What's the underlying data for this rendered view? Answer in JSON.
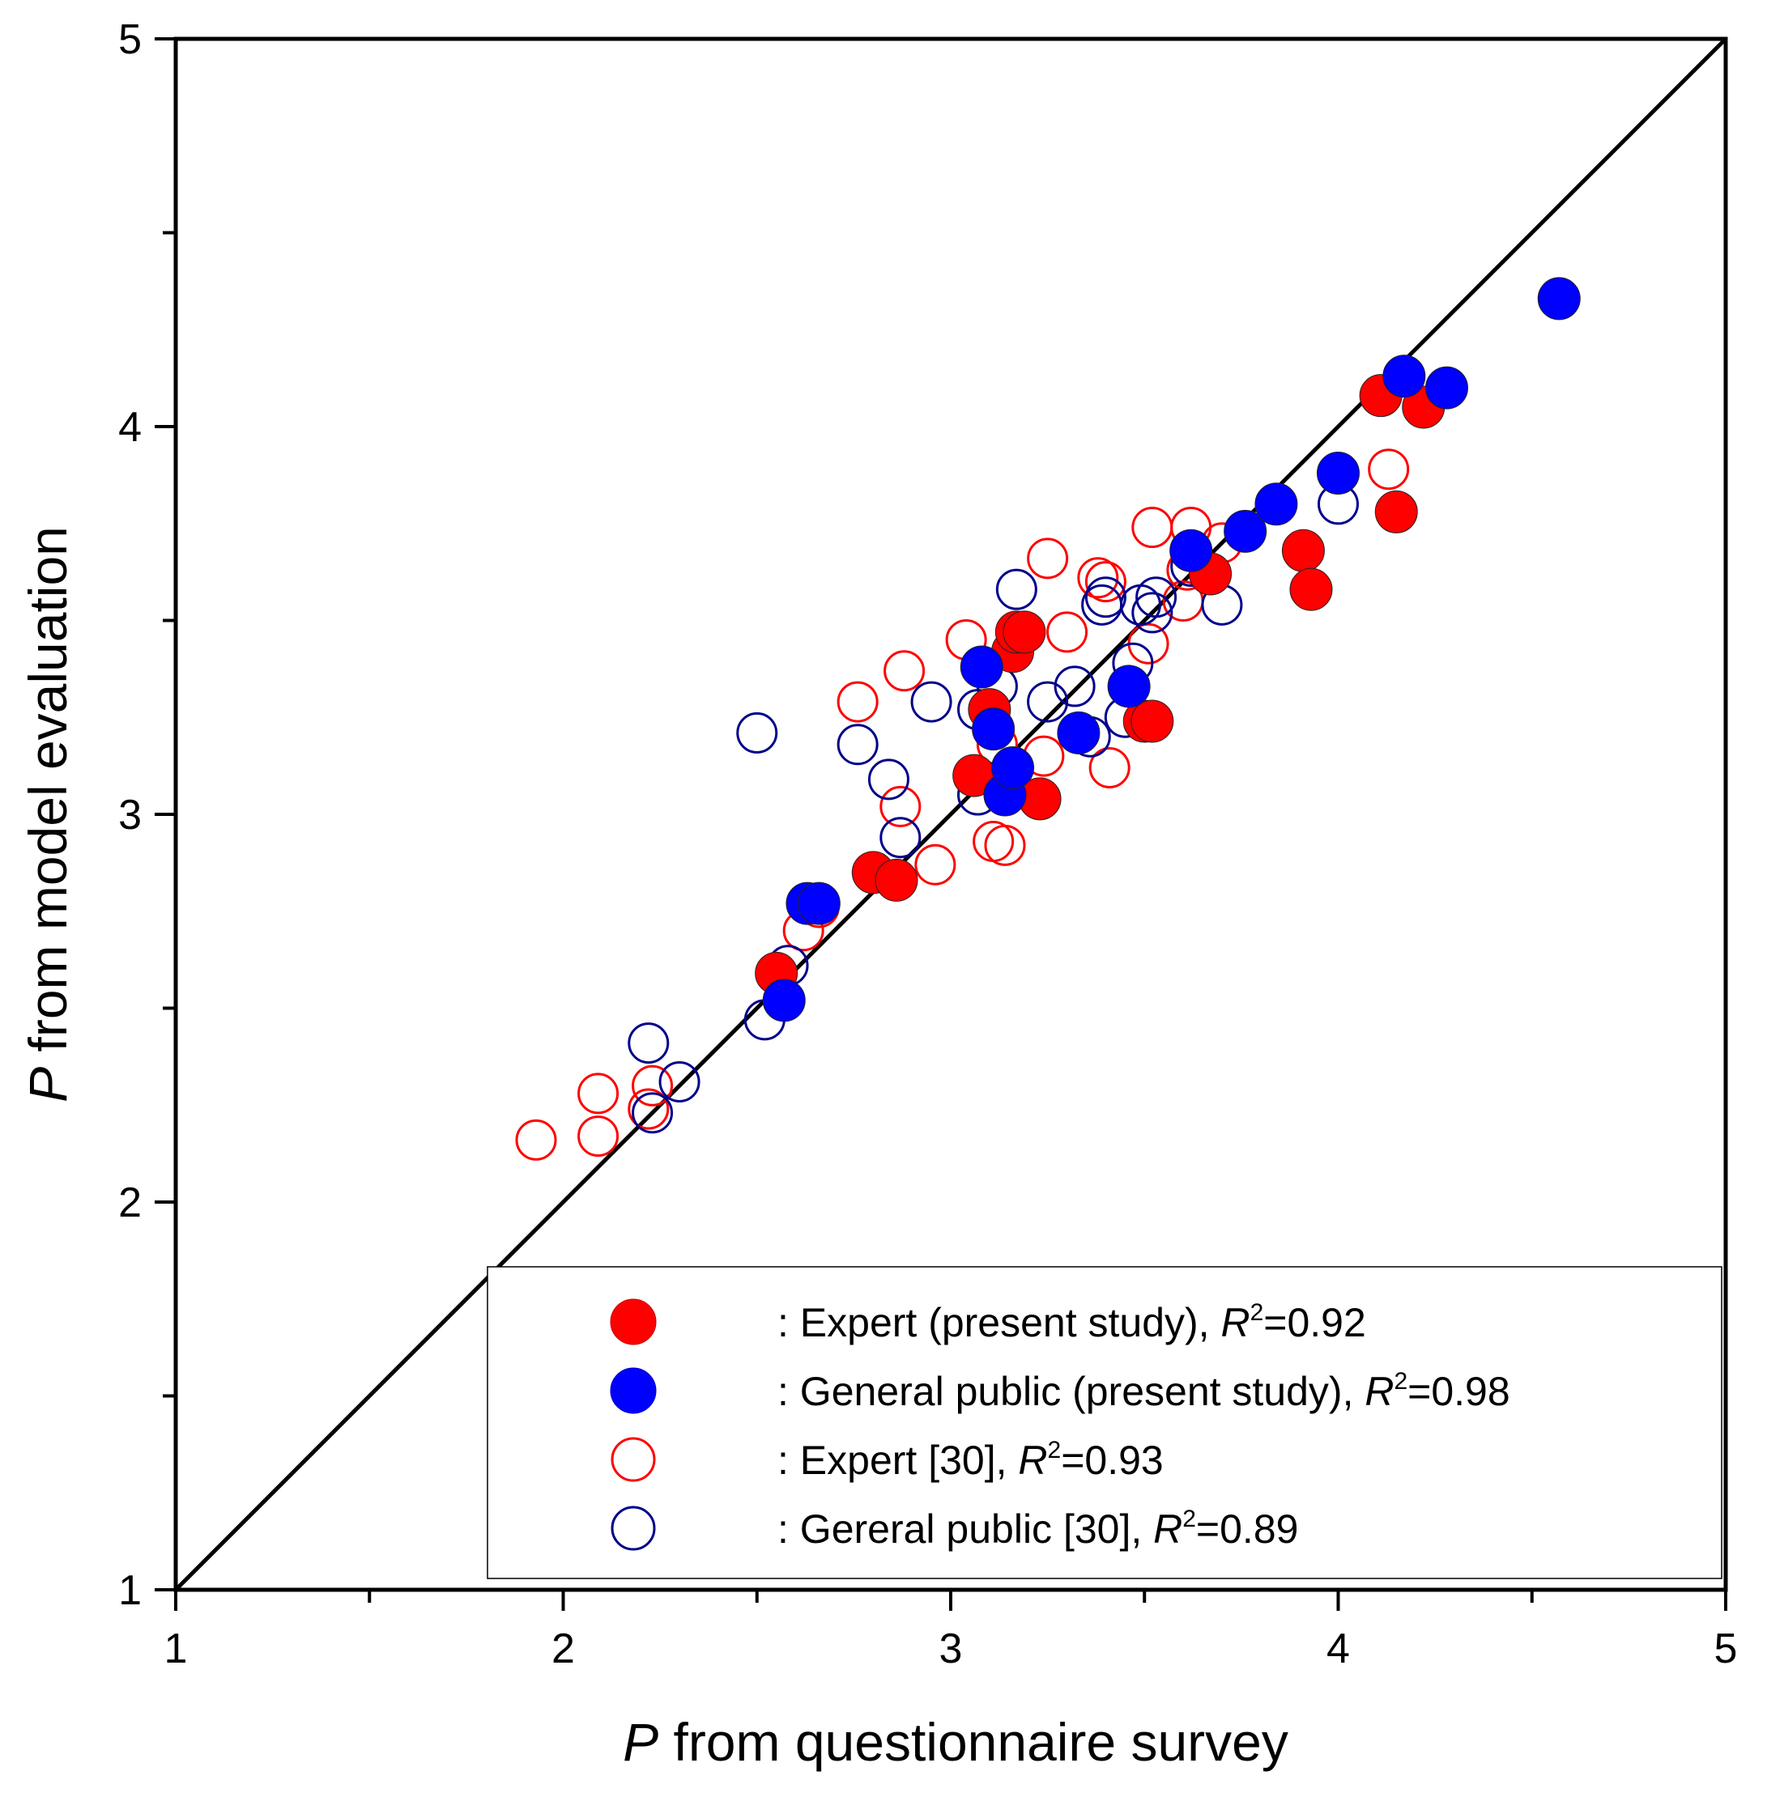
{
  "chart_data": {
    "type": "scatter",
    "title": "",
    "xlabel_var": "P",
    "xlabel_rest": " from questionnaire survey",
    "ylabel_var": "P",
    "ylabel_rest": " from model evaluation",
    "xlim": [
      1,
      5
    ],
    "ylim": [
      1,
      5
    ],
    "x_ticks": [
      1,
      2,
      3,
      4,
      5
    ],
    "y_ticks": [
      1,
      2,
      3,
      4,
      5
    ],
    "x_tick_labels": [
      "1",
      "2",
      "3",
      "4",
      "5"
    ],
    "y_tick_labels": [
      "1",
      "2",
      "3",
      "4",
      "5"
    ],
    "minor_tick_step": 0.5,
    "reference_line": {
      "from": [
        1,
        1
      ],
      "to": [
        5,
        5
      ],
      "color": "#000000"
    },
    "legend_position": "bottom-right",
    "series": [
      {
        "name": "Expert (present study)",
        "legend_prefix": ": ",
        "legend_label": "Expert (present study), ",
        "r2_var": "R",
        "r2_sup": "2",
        "r2_value": "=0.92",
        "marker": "filled",
        "color": "#ff0000",
        "points": [
          [
            2.55,
            2.59
          ],
          [
            2.8,
            2.85
          ],
          [
            2.86,
            2.83
          ],
          [
            3.06,
            3.1
          ],
          [
            3.1,
            3.27
          ],
          [
            3.16,
            3.42
          ],
          [
            3.17,
            3.47
          ],
          [
            3.19,
            3.47
          ],
          [
            3.23,
            3.04
          ],
          [
            3.5,
            3.24
          ],
          [
            3.52,
            3.24
          ],
          [
            3.67,
            3.62
          ],
          [
            3.91,
            3.68
          ],
          [
            3.93,
            3.58
          ],
          [
            4.11,
            4.08
          ],
          [
            4.15,
            3.78
          ],
          [
            4.22,
            4.05
          ]
        ]
      },
      {
        "name": "General public (present study)",
        "legend_prefix": ": ",
        "legend_label": "General public (present study), ",
        "r2_var": "R",
        "r2_sup": "2",
        "r2_value": "=0.98",
        "marker": "filled",
        "color": "#0000ff",
        "points": [
          [
            2.57,
            2.52
          ],
          [
            2.63,
            2.77
          ],
          [
            2.66,
            2.77
          ],
          [
            3.08,
            3.38
          ],
          [
            3.11,
            3.22
          ],
          [
            3.14,
            3.05
          ],
          [
            3.16,
            3.12
          ],
          [
            3.33,
            3.21
          ],
          [
            3.46,
            3.33
          ],
          [
            3.62,
            3.68
          ],
          [
            3.76,
            3.73
          ],
          [
            3.84,
            3.8
          ],
          [
            4.0,
            3.88
          ],
          [
            4.17,
            4.13
          ],
          [
            4.28,
            4.1
          ],
          [
            4.57,
            4.33
          ]
        ]
      },
      {
        "name": "Expert [30]",
        "legend_prefix": ": ",
        "legend_label": "Expert [30], ",
        "r2_var": "R",
        "r2_sup": "2",
        "r2_value": "=0.93",
        "marker": "open",
        "color": "#ff0000",
        "points": [
          [
            1.93,
            2.16
          ],
          [
            2.09,
            2.28
          ],
          [
            2.09,
            2.17
          ],
          [
            2.22,
            2.24
          ],
          [
            2.23,
            2.3
          ],
          [
            2.62,
            2.7
          ],
          [
            2.66,
            2.76
          ],
          [
            2.76,
            3.29
          ],
          [
            2.87,
            3.02
          ],
          [
            2.88,
            3.37
          ],
          [
            2.96,
            2.87
          ],
          [
            3.04,
            3.45
          ],
          [
            3.11,
            2.93
          ],
          [
            3.12,
            3.18
          ],
          [
            3.14,
            2.92
          ],
          [
            3.24,
            3.15
          ],
          [
            3.25,
            3.66
          ],
          [
            3.3,
            3.47
          ],
          [
            3.38,
            3.61
          ],
          [
            3.4,
            3.6
          ],
          [
            3.41,
            3.12
          ],
          [
            3.51,
            3.44
          ],
          [
            3.52,
            3.74
          ],
          [
            3.6,
            3.55
          ],
          [
            3.61,
            3.63
          ],
          [
            3.62,
            3.74
          ],
          [
            3.7,
            3.7
          ],
          [
            4.13,
            3.89
          ]
        ]
      },
      {
        "name": "Gereral public [30]",
        "legend_prefix": ": ",
        "legend_label": "Gereral public [30], ",
        "r2_var": "R",
        "r2_sup": "2",
        "r2_value": "=0.89",
        "marker": "open",
        "color": "#00008b",
        "points": [
          [
            2.22,
            2.41
          ],
          [
            2.23,
            2.23
          ],
          [
            2.3,
            2.31
          ],
          [
            2.5,
            3.21
          ],
          [
            2.52,
            2.47
          ],
          [
            2.58,
            2.61
          ],
          [
            2.76,
            3.18
          ],
          [
            2.84,
            3.09
          ],
          [
            2.87,
            2.94
          ],
          [
            2.95,
            3.29
          ],
          [
            3.07,
            3.27
          ],
          [
            3.07,
            3.05
          ],
          [
            3.12,
            3.33
          ],
          [
            3.17,
            3.58
          ],
          [
            3.25,
            3.29
          ],
          [
            3.32,
            3.33
          ],
          [
            3.36,
            3.2
          ],
          [
            3.39,
            3.54
          ],
          [
            3.4,
            3.56
          ],
          [
            3.45,
            3.25
          ],
          [
            3.47,
            3.39
          ],
          [
            3.49,
            3.54
          ],
          [
            3.52,
            3.52
          ],
          [
            3.53,
            3.56
          ],
          [
            3.62,
            3.64
          ],
          [
            3.7,
            3.54
          ],
          [
            4.0,
            3.8
          ]
        ]
      }
    ]
  }
}
